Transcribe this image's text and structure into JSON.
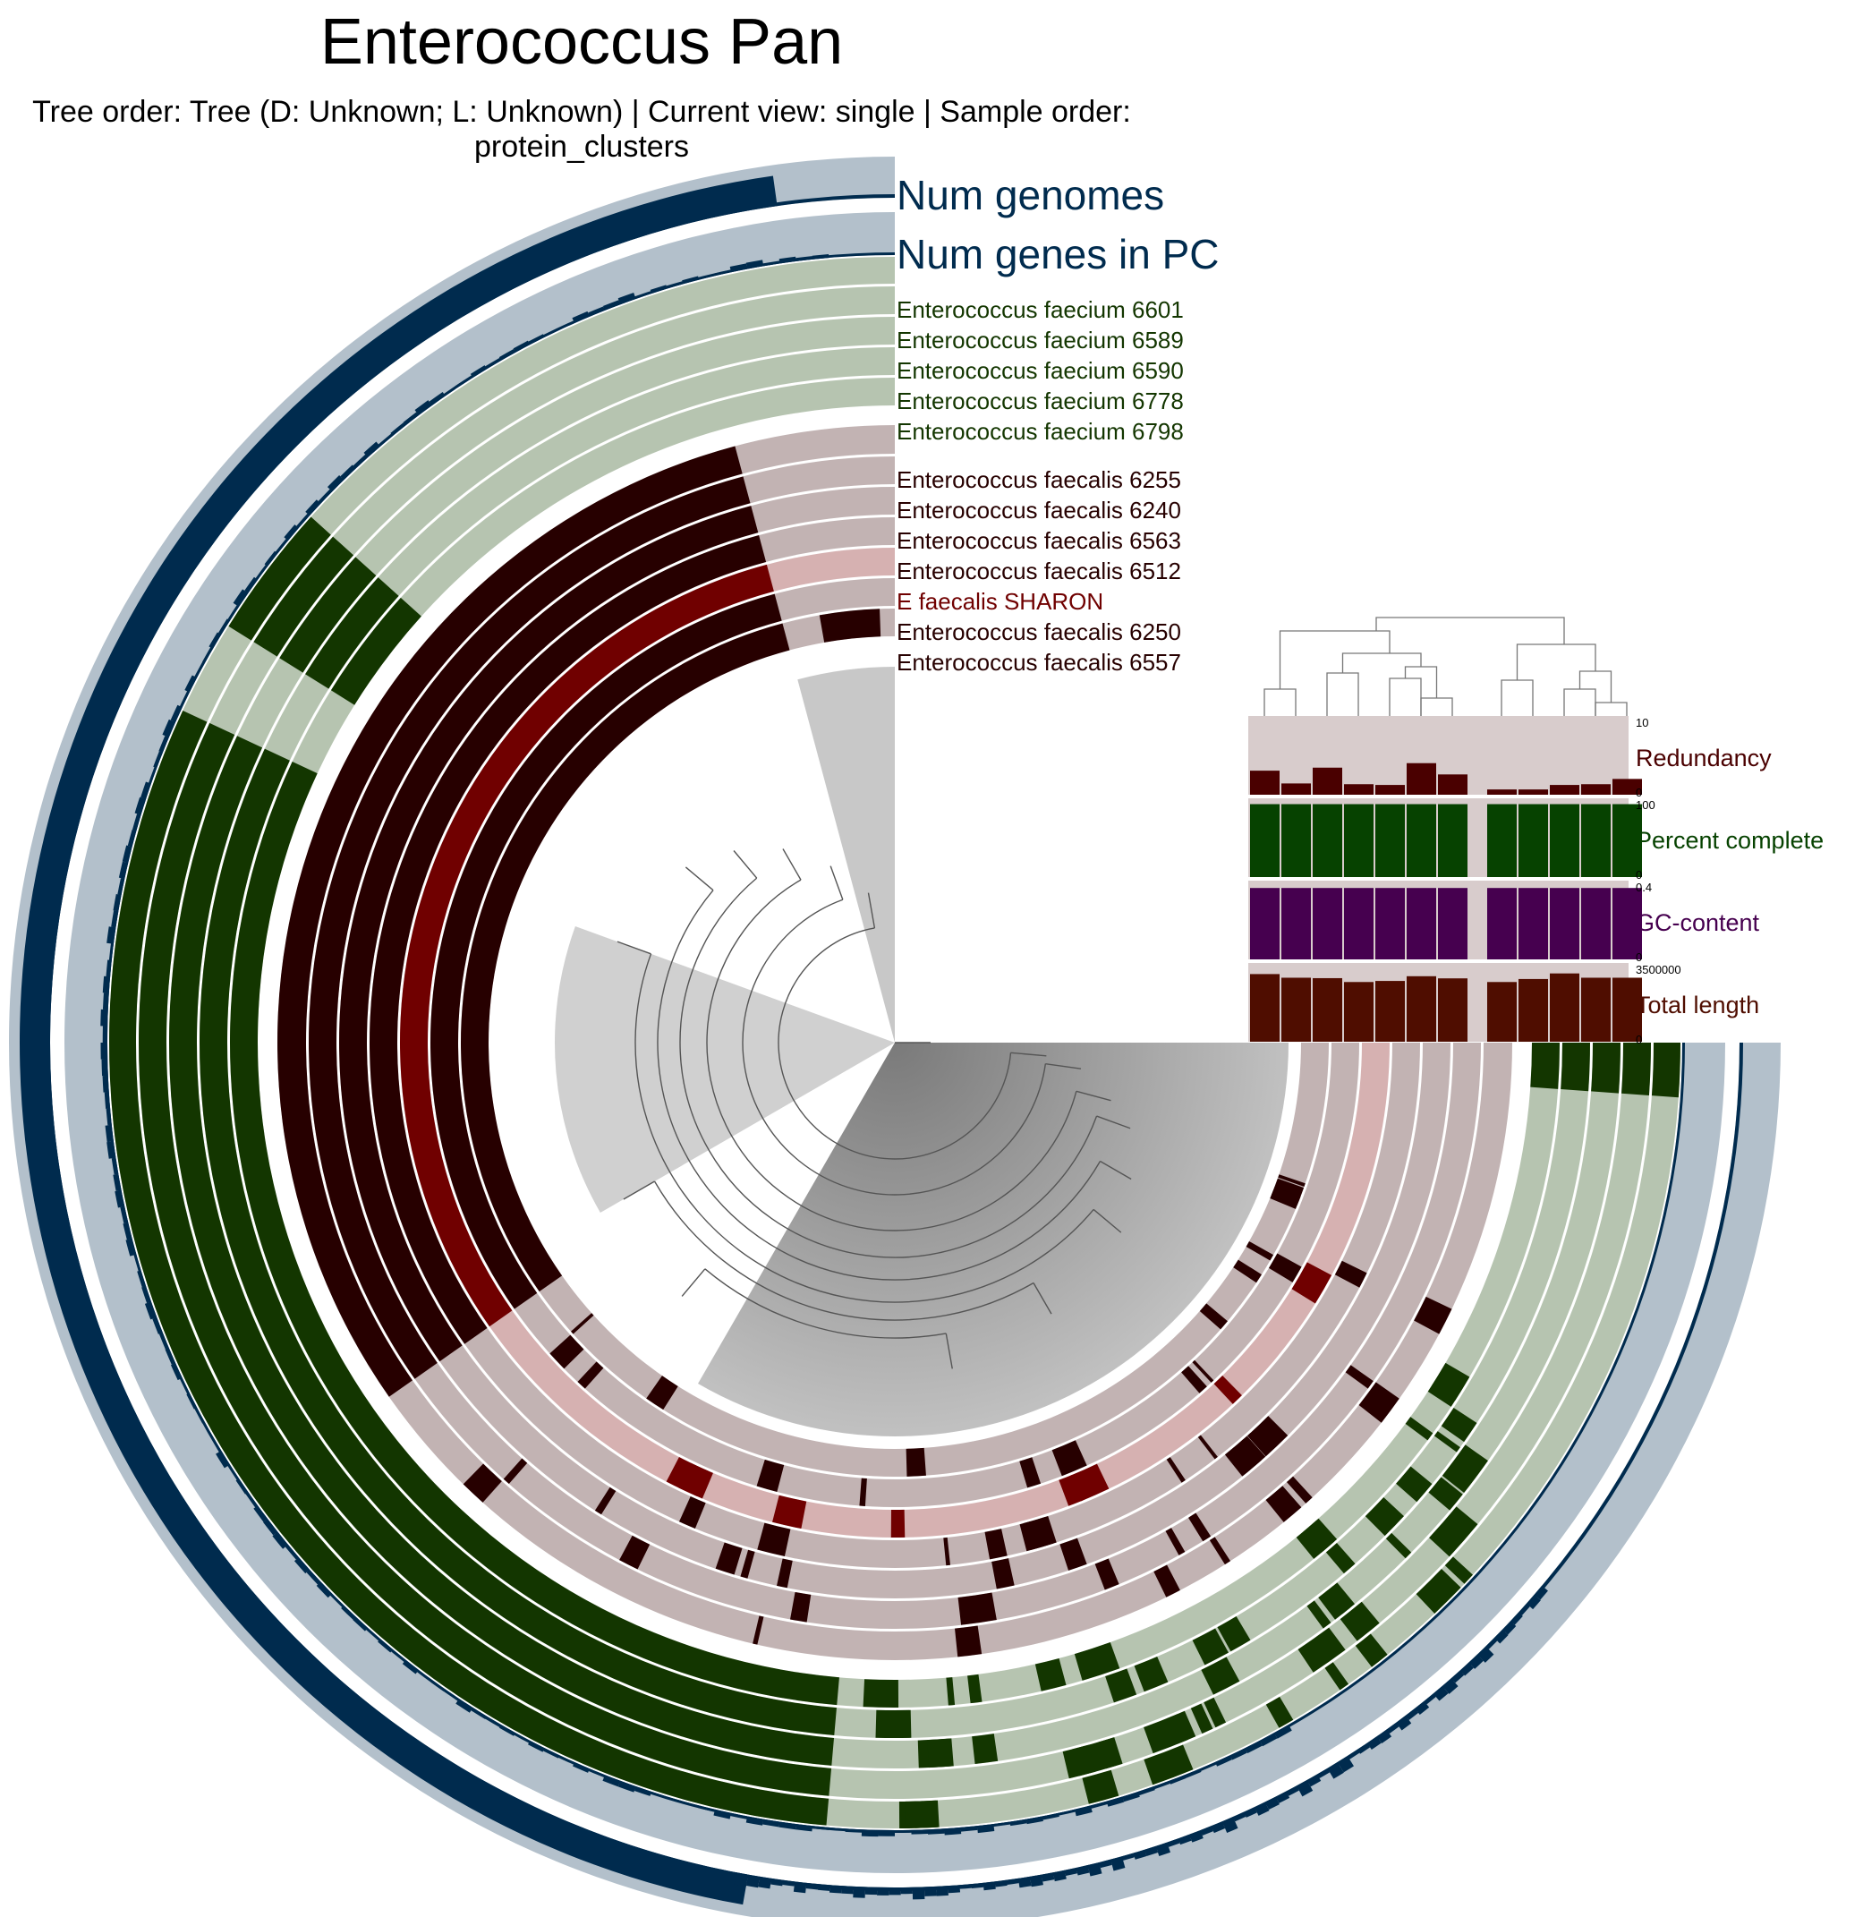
{
  "header": {
    "title": "Enterococcus Pan",
    "subtitle": "Tree order: Tree (D: Unknown; L: Unknown) | Current view: single | Sample order: protein_clusters"
  },
  "colors": {
    "navy": "#002b4e",
    "navy_bg": "#b3c0cb",
    "green": "#133600",
    "green_bg": "#b6c4b0",
    "maroon": "#270000",
    "maroon_bg": "#c2b3b3",
    "sharon": "#700000",
    "sharon_bg": "#d6b1b1",
    "redundancy": "#4a0000",
    "redundancy_bg": "#d8cccc",
    "percent_complete": "#064200",
    "gc_content": "#46004f",
    "total_length": "#4f0d00",
    "tree_fill": "#bdbdbd"
  },
  "layers": [
    {
      "label": "Num genomes",
      "kind": "summary"
    },
    {
      "label": "Num genes in PC",
      "kind": "summary"
    },
    {
      "label": "Enterococcus faecium 6601",
      "kind": "faecium"
    },
    {
      "label": "Enterococcus faecium 6589",
      "kind": "faecium"
    },
    {
      "label": "Enterococcus faecium 6590",
      "kind": "faecium"
    },
    {
      "label": "Enterococcus faecium 6778",
      "kind": "faecium"
    },
    {
      "label": "Enterococcus faecium 6798",
      "kind": "faecium"
    },
    {
      "label": "Enterococcus faecalis 6255",
      "kind": "faecalis"
    },
    {
      "label": "Enterococcus faecalis 6240",
      "kind": "faecalis"
    },
    {
      "label": "Enterococcus faecalis 6563",
      "kind": "faecalis"
    },
    {
      "label": "Enterococcus faecalis 6512",
      "kind": "faecalis"
    },
    {
      "label": "E faecalis SHARON",
      "kind": "sharon"
    },
    {
      "label": "Enterococcus faecalis 6250",
      "kind": "faecalis"
    },
    {
      "label": "Enterococcus faecalis 6557",
      "kind": "faecalis"
    }
  ],
  "sample_panel": {
    "bars": [
      {
        "label": "Redundancy",
        "max": "10",
        "min": "0",
        "values": [
          3.2,
          1.5,
          3.6,
          1.4,
          1.3,
          4.2,
          2.7,
          0.7,
          0.7,
          1.3,
          1.4,
          2.1
        ]
      },
      {
        "label": "Percent complete",
        "max": "100",
        "min": "0",
        "values": [
          97,
          97,
          97,
          97,
          97,
          97,
          97,
          97,
          97,
          97,
          97,
          97
        ]
      },
      {
        "label": "GC-content",
        "max": "0.4",
        "min": "0",
        "values": [
          0.38,
          0.38,
          0.38,
          0.38,
          0.38,
          0.38,
          0.38,
          0.38,
          0.38,
          0.38,
          0.38,
          0.38
        ]
      },
      {
        "label": "Total length",
        "max": "3500000",
        "min": "0",
        "values": [
          3150000,
          2980000,
          2960000,
          2780000,
          2830000,
          3050000,
          2950000,
          2780000,
          2920000,
          3180000,
          2980000,
          2980000
        ]
      }
    ]
  }
}
